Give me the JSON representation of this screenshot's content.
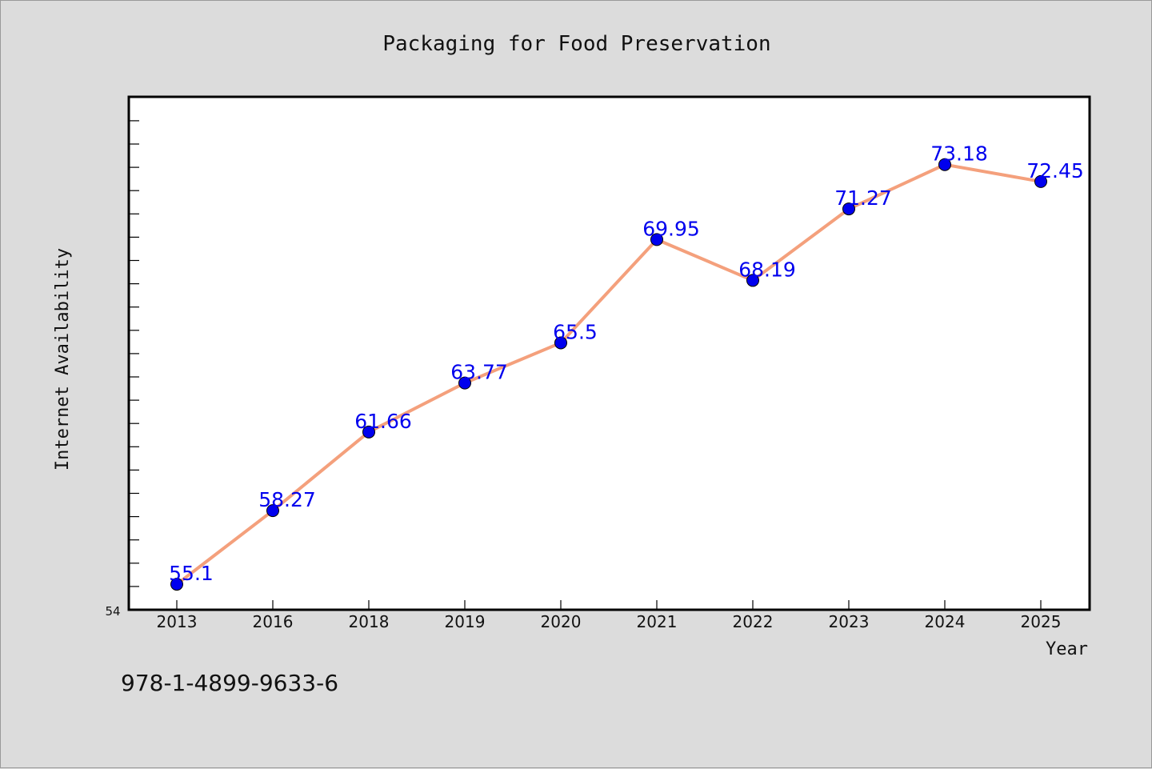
{
  "chart_data": {
    "type": "line",
    "title": "Packaging for Food Preservation",
    "xlabel": "Year",
    "ylabel": "Internet Availability",
    "categories": [
      "2013",
      "2016",
      "2018",
      "2019",
      "2020",
      "2021",
      "2022",
      "2023",
      "2024",
      "2025"
    ],
    "series": [
      {
        "values": [
          55.1,
          58.27,
          61.66,
          63.77,
          65.5,
          69.95,
          68.19,
          71.27,
          73.18,
          72.45
        ],
        "labels": [
          "55.1",
          "58.27",
          "61.66",
          "63.77",
          "65.5",
          "69.95",
          "68.19",
          "71.27",
          "73.18",
          "72.45"
        ],
        "line_color": "#f4a07c",
        "marker_color": "#0000ee",
        "label_color": "#0000ee"
      }
    ],
    "ylim": [
      54,
      76.1
    ],
    "y_tick_labels": [
      "54"
    ],
    "grid": false,
    "legend": "none"
  },
  "footer_code": "978-1-4899-9633-6"
}
